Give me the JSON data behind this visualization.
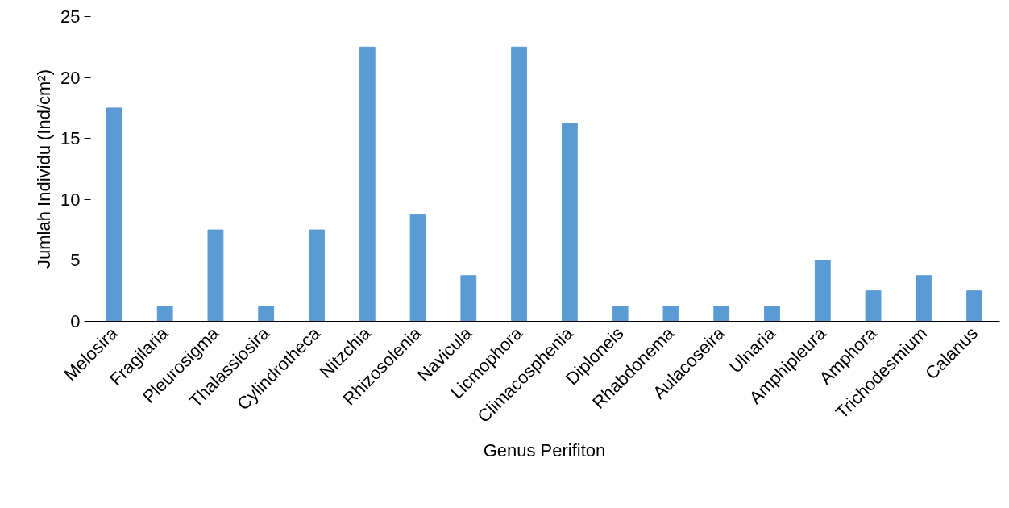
{
  "chart_data": {
    "type": "bar",
    "xlabel": "Genus Perifiton",
    "ylabel": "Jumlah Individu (Ind/cm²)",
    "categories": [
      "Melosira",
      "Fragilaria",
      "Pleurosigma",
      "Thalassiosira",
      "Cylindrotheca",
      "Nitzchia",
      "Rhizosolenia",
      "Navicula",
      "Licmophora",
      "Climacosphenia",
      "Diploneis",
      "Rhabdonema",
      "Aulacoseira",
      "Ulnaria",
      "Amphipleura",
      "Amphora",
      "Trichodesmium",
      "Calanus"
    ],
    "values": [
      17.5,
      1.25,
      7.5,
      1.25,
      7.5,
      22.5,
      8.75,
      3.75,
      22.5,
      16.25,
      1.25,
      1.25,
      1.25,
      1.25,
      5,
      2.5,
      3.75,
      2.5
    ],
    "color": "#5b9bd5",
    "ylim": [
      0,
      25
    ],
    "yticks": [
      0,
      5,
      10,
      15,
      20,
      25
    ],
    "grid": false
  }
}
